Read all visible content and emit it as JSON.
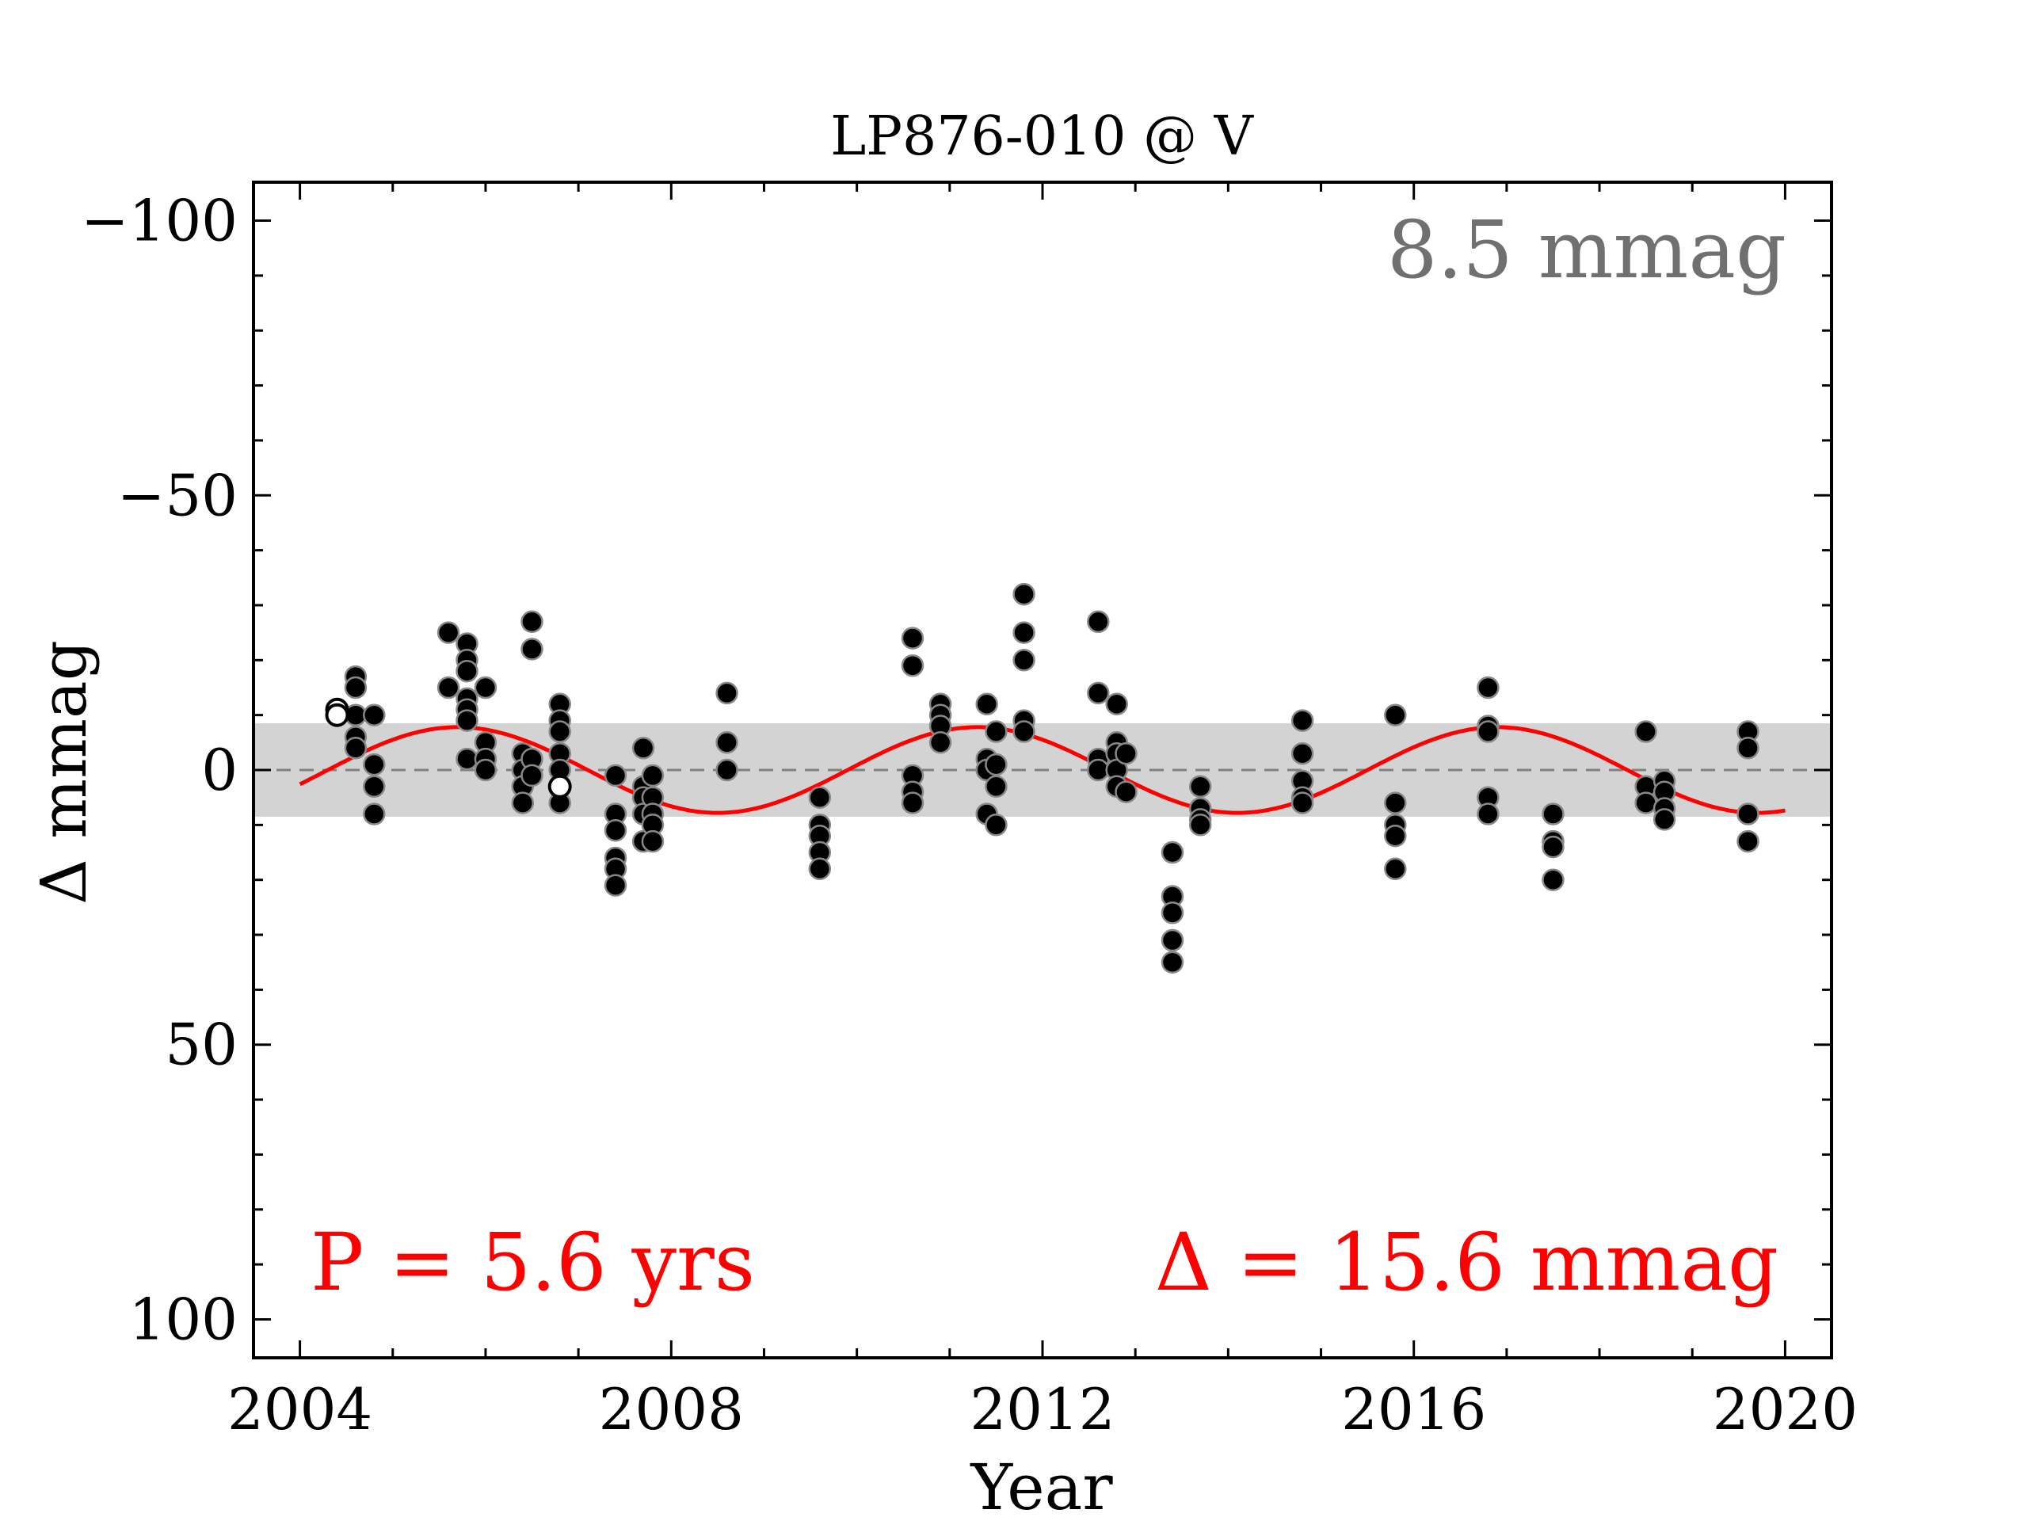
{
  "chart_data": {
    "type": "scatter",
    "title": "LP876-010 @ V",
    "xlabel": "Year",
    "ylabel": "Δ  mmag",
    "xlim": [
      2003.5,
      2020.5
    ],
    "ylim": [
      -107,
      107
    ],
    "y_inverted": true,
    "x_ticks": [
      2004,
      2008,
      2012,
      2016,
      2020
    ],
    "x_tick_labels": [
      "2004",
      "2008",
      "2012",
      "2016",
      "2020"
    ],
    "y_ticks": [
      -100,
      -50,
      0,
      50,
      100
    ],
    "y_tick_labels": [
      "−100",
      "−50",
      "0",
      "50",
      "100"
    ],
    "rms_band": 8.5,
    "rms_label": "8.5 mmag",
    "fit": {
      "period_years": 5.6,
      "amplitude_mmag": 7.8,
      "peak_year": 2005.7,
      "x_range": [
        2004.0,
        2020.0
      ],
      "period_label": "P = 5.6 yrs",
      "delta_label": "Δ = 15.6 mmag"
    },
    "colors": {
      "points": "#000000",
      "point_edge": "#888888",
      "fit": "#ff0000",
      "band": "#d3d3d3",
      "zero_line": "#808080",
      "rms_text": "#707070"
    },
    "series": [
      {
        "points": [
          [
            2004.6,
            -17
          ],
          [
            2004.6,
            -15
          ],
          [
            2004.6,
            -10
          ],
          [
            2004.6,
            -6
          ],
          [
            2004.6,
            -4
          ],
          [
            2004.8,
            -10
          ],
          [
            2004.8,
            -1
          ],
          [
            2004.8,
            3
          ],
          [
            2004.8,
            8
          ],
          [
            2005.6,
            -25
          ],
          [
            2005.6,
            -15
          ],
          [
            2005.8,
            -23
          ],
          [
            2005.8,
            -20
          ],
          [
            2005.8,
            -18
          ],
          [
            2005.8,
            -13
          ],
          [
            2005.8,
            -11
          ],
          [
            2005.8,
            -9
          ],
          [
            2005.8,
            -2
          ],
          [
            2006.0,
            -15
          ],
          [
            2006.0,
            -5
          ],
          [
            2006.0,
            -2
          ],
          [
            2006.0,
            0
          ],
          [
            2006.4,
            -3
          ],
          [
            2006.4,
            0
          ],
          [
            2006.4,
            3
          ],
          [
            2006.4,
            6
          ],
          [
            2006.5,
            -27
          ],
          [
            2006.5,
            -22
          ],
          [
            2006.5,
            -2
          ],
          [
            2006.5,
            1
          ],
          [
            2006.8,
            -12
          ],
          [
            2006.8,
            -9
          ],
          [
            2006.8,
            -7
          ],
          [
            2006.8,
            -3
          ],
          [
            2006.8,
            0
          ],
          [
            2006.8,
            3
          ],
          [
            2006.8,
            6
          ],
          [
            2007.4,
            1
          ],
          [
            2007.4,
            8
          ],
          [
            2007.4,
            11
          ],
          [
            2007.4,
            16
          ],
          [
            2007.4,
            18
          ],
          [
            2007.4,
            21
          ],
          [
            2007.7,
            -4
          ],
          [
            2007.7,
            3
          ],
          [
            2007.7,
            5
          ],
          [
            2007.7,
            8
          ],
          [
            2007.7,
            13
          ],
          [
            2007.8,
            1
          ],
          [
            2007.8,
            5
          ],
          [
            2007.8,
            8
          ],
          [
            2007.8,
            10
          ],
          [
            2007.8,
            13
          ],
          [
            2008.6,
            -14
          ],
          [
            2008.6,
            -5
          ],
          [
            2008.6,
            0
          ],
          [
            2009.6,
            5
          ],
          [
            2009.6,
            10
          ],
          [
            2009.6,
            12
          ],
          [
            2009.6,
            15
          ],
          [
            2009.6,
            18
          ],
          [
            2010.6,
            -24
          ],
          [
            2010.6,
            -19
          ],
          [
            2010.6,
            1
          ],
          [
            2010.6,
            4
          ],
          [
            2010.6,
            6
          ],
          [
            2010.9,
            -12
          ],
          [
            2010.9,
            -10
          ],
          [
            2010.9,
            -8
          ],
          [
            2010.9,
            -5
          ],
          [
            2011.4,
            -12
          ],
          [
            2011.4,
            -2
          ],
          [
            2011.4,
            0
          ],
          [
            2011.4,
            8
          ],
          [
            2011.5,
            -7
          ],
          [
            2011.5,
            -1
          ],
          [
            2011.5,
            3
          ],
          [
            2011.5,
            10
          ],
          [
            2011.8,
            -32
          ],
          [
            2011.8,
            -25
          ],
          [
            2011.8,
            -20
          ],
          [
            2011.8,
            -9
          ],
          [
            2011.8,
            -7
          ],
          [
            2012.6,
            -27
          ],
          [
            2012.6,
            -14
          ],
          [
            2012.6,
            -2
          ],
          [
            2012.6,
            0
          ],
          [
            2012.8,
            -12
          ],
          [
            2012.8,
            -5
          ],
          [
            2012.8,
            -3
          ],
          [
            2012.8,
            0
          ],
          [
            2012.8,
            3
          ],
          [
            2012.9,
            -3
          ],
          [
            2012.9,
            4
          ],
          [
            2013.4,
            15
          ],
          [
            2013.4,
            23
          ],
          [
            2013.4,
            26
          ],
          [
            2013.4,
            31
          ],
          [
            2013.4,
            35
          ],
          [
            2013.7,
            3
          ],
          [
            2013.7,
            7
          ],
          [
            2013.7,
            9
          ],
          [
            2013.7,
            10
          ],
          [
            2014.8,
            -9
          ],
          [
            2014.8,
            -3
          ],
          [
            2014.8,
            2
          ],
          [
            2014.8,
            5
          ],
          [
            2014.8,
            6
          ],
          [
            2015.8,
            -10
          ],
          [
            2015.8,
            6
          ],
          [
            2015.8,
            10
          ],
          [
            2015.8,
            12
          ],
          [
            2015.8,
            18
          ],
          [
            2016.8,
            -15
          ],
          [
            2016.8,
            -8
          ],
          [
            2016.8,
            -7
          ],
          [
            2016.8,
            5
          ],
          [
            2016.8,
            8
          ],
          [
            2017.5,
            8
          ],
          [
            2017.5,
            13
          ],
          [
            2017.5,
            14
          ],
          [
            2017.5,
            20
          ],
          [
            2018.5,
            -7
          ],
          [
            2018.5,
            3
          ],
          [
            2018.5,
            6
          ],
          [
            2018.7,
            2
          ],
          [
            2018.7,
            4
          ],
          [
            2018.7,
            7
          ],
          [
            2018.7,
            9
          ],
          [
            2019.6,
            -7
          ],
          [
            2019.6,
            -4
          ],
          [
            2019.6,
            8
          ],
          [
            2019.6,
            13
          ]
        ]
      },
      {
        "marker": "open",
        "points": [
          [
            2004.4,
            -11
          ],
          [
            2004.4,
            -10
          ],
          [
            2006.8,
            3
          ]
        ]
      }
    ]
  }
}
